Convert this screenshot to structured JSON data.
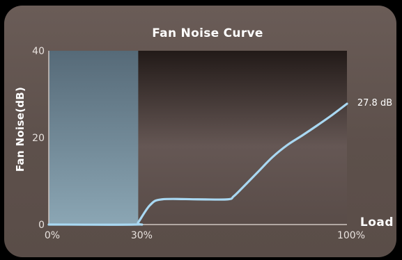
{
  "chart_data": {
    "type": "line",
    "title": "Fan Noise Curve",
    "ylabel": "Fan Noise(dB)",
    "xlabel": "Load",
    "xlim": [
      0,
      100
    ],
    "ylim": [
      0,
      40
    ],
    "x_ticks": [
      {
        "value": 0,
        "label": "0%"
      },
      {
        "value": 30,
        "label": "30%"
      },
      {
        "value": 100,
        "label": "100%"
      }
    ],
    "y_ticks": [
      {
        "value": 0,
        "label": "0"
      },
      {
        "value": 20,
        "label": "20"
      },
      {
        "value": 40,
        "label": "40"
      }
    ],
    "highlight_region": {
      "x_from": 0,
      "x_to": 30
    },
    "series": [
      {
        "x": [
          0,
          29,
          30,
          34,
          38,
          50,
          60,
          62,
          65,
          70,
          75,
          80,
          85,
          90,
          95,
          100
        ],
        "y": [
          0,
          0,
          0.5,
          4.5,
          5.8,
          5.8,
          5.8,
          6.5,
          8.5,
          12,
          15.5,
          18.3,
          20.5,
          22.8,
          25.2,
          27.8
        ]
      }
    ],
    "end_label": "27.8 dB",
    "grid": false,
    "colors": {
      "line": "#a9d8f2",
      "region": "#7f9aa8"
    }
  }
}
